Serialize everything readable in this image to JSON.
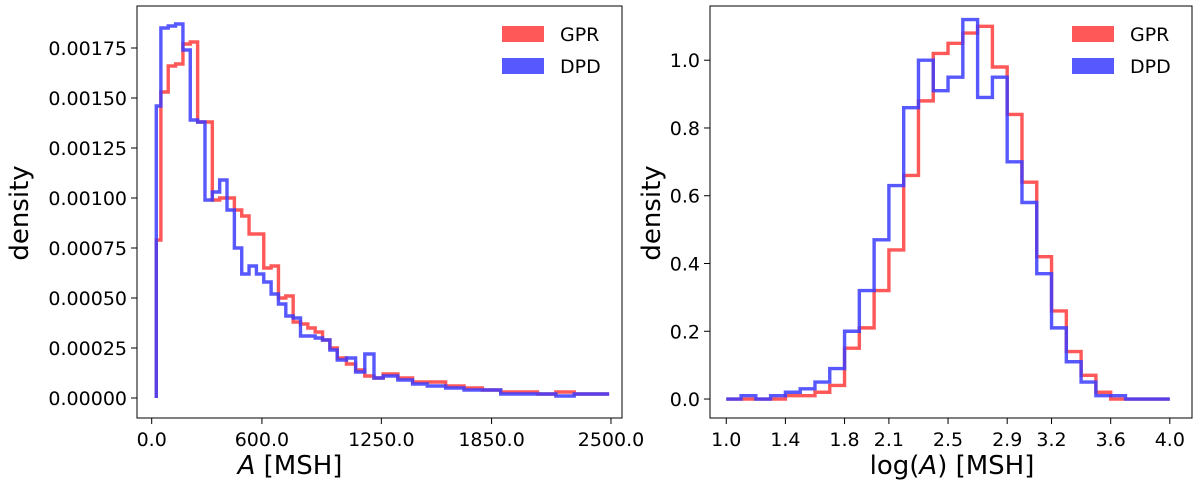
{
  "chart_data": [
    {
      "type": "histogram-step",
      "xlabel_italic": "A",
      "xlabel_rest": " [MSH]",
      "ylabel": "density",
      "xlim": [
        -80,
        2560
      ],
      "ylim": [
        -0.0001,
        0.00196
      ],
      "xticks": [
        0,
        600,
        1250,
        1850,
        2500
      ],
      "xtick_labels": [
        "0.0",
        "600.0",
        "1250.0",
        "1850.0",
        "2500.0"
      ],
      "yticks": [
        0,
        0.00025,
        0.0005,
        0.00075,
        0.001,
        0.00125,
        0.0015,
        0.00175
      ],
      "ytick_labels": [
        "0.00000",
        "0.00025",
        "0.00050",
        "0.00075",
        "0.00100",
        "0.00125",
        "0.00150",
        "0.00175"
      ],
      "legend_position": "top-right",
      "series": [
        {
          "name": "GPR",
          "color": "#ff3b3b",
          "bins": [
            [
              25,
              50,
              0.00079
            ],
            [
              50,
              90,
              0.00153
            ],
            [
              90,
              130,
              0.00166
            ],
            [
              130,
              170,
              0.00167
            ],
            [
              170,
              210,
              0.00177
            ],
            [
              210,
              250,
              0.00178
            ],
            [
              250,
              290,
              0.00138
            ],
            [
              290,
              330,
              0.00138
            ],
            [
              330,
              370,
              0.00099
            ],
            [
              370,
              410,
              0.001
            ],
            [
              410,
              450,
              0.001
            ],
            [
              450,
              490,
              0.00094
            ],
            [
              490,
              530,
              0.00091
            ],
            [
              530,
              570,
              0.00082
            ],
            [
              570,
              610,
              0.00082
            ],
            [
              610,
              650,
              0.00065
            ],
            [
              650,
              690,
              0.00066
            ],
            [
              690,
              730,
              0.0005
            ],
            [
              730,
              770,
              0.00051
            ],
            [
              770,
              810,
              0.00038
            ],
            [
              810,
              850,
              0.00037
            ],
            [
              850,
              890,
              0.00035
            ],
            [
              890,
              930,
              0.00033
            ],
            [
              930,
              970,
              0.00029
            ],
            [
              970,
              1010,
              0.00025
            ],
            [
              1010,
              1060,
              0.0002
            ],
            [
              1060,
              1110,
              0.00017
            ],
            [
              1110,
              1160,
              0.00014
            ],
            [
              1160,
              1210,
              0.00011
            ],
            [
              1210,
              1260,
              0.0001
            ],
            [
              1260,
              1340,
              0.00012
            ],
            [
              1340,
              1420,
              0.0001
            ],
            [
              1420,
              1500,
              8e-05
            ],
            [
              1500,
              1600,
              8e-05
            ],
            [
              1600,
              1700,
              6e-05
            ],
            [
              1700,
              1800,
              5e-05
            ],
            [
              1800,
              1900,
              4e-05
            ],
            [
              1900,
              2000,
              3e-05
            ],
            [
              2000,
              2100,
              3e-05
            ],
            [
              2100,
              2200,
              2e-05
            ],
            [
              2200,
              2300,
              3e-05
            ],
            [
              2300,
              2400,
              2e-05
            ],
            [
              2400,
              2490,
              2e-05
            ]
          ]
        },
        {
          "name": "DPD",
          "color": "#3b3bff",
          "bins": [
            [
              25,
              50,
              0.00146
            ],
            [
              50,
              90,
              0.00185
            ],
            [
              90,
              130,
              0.00186
            ],
            [
              130,
              170,
              0.00187
            ],
            [
              170,
              210,
              0.00174
            ],
            [
              210,
              250,
              0.00139
            ],
            [
              250,
              290,
              0.00138
            ],
            [
              290,
              330,
              0.00099
            ],
            [
              330,
              370,
              0.00103
            ],
            [
              370,
              410,
              0.00109
            ],
            [
              410,
              450,
              0.00094
            ],
            [
              450,
              490,
              0.00075
            ],
            [
              490,
              530,
              0.00062
            ],
            [
              530,
              570,
              0.00066
            ],
            [
              570,
              610,
              0.00062
            ],
            [
              610,
              650,
              0.00058
            ],
            [
              650,
              690,
              0.00052
            ],
            [
              690,
              730,
              0.00047
            ],
            [
              730,
              770,
              0.00041
            ],
            [
              770,
              810,
              0.0004
            ],
            [
              810,
              850,
              0.00031
            ],
            [
              850,
              890,
              0.00031
            ],
            [
              890,
              930,
              0.0003
            ],
            [
              930,
              970,
              0.00029
            ],
            [
              970,
              1010,
              0.00024
            ],
            [
              1010,
              1060,
              0.00019
            ],
            [
              1060,
              1110,
              0.0002
            ],
            [
              1110,
              1160,
              0.00013
            ],
            [
              1160,
              1210,
              0.00022
            ],
            [
              1210,
              1260,
              0.0001
            ],
            [
              1260,
              1340,
              0.00011
            ],
            [
              1340,
              1420,
              9e-05
            ],
            [
              1420,
              1500,
              7e-05
            ],
            [
              1500,
              1600,
              6e-05
            ],
            [
              1600,
              1700,
              5e-05
            ],
            [
              1700,
              1800,
              4e-05
            ],
            [
              1800,
              1900,
              4e-05
            ],
            [
              1900,
              2000,
              2e-05
            ],
            [
              2000,
              2100,
              2e-05
            ],
            [
              2100,
              2200,
              2e-05
            ],
            [
              2200,
              2300,
              1e-05
            ],
            [
              2300,
              2400,
              2e-05
            ],
            [
              2400,
              2490,
              2e-05
            ]
          ]
        }
      ]
    },
    {
      "type": "histogram-step",
      "xlabel_pre": "log(",
      "xlabel_italic": "A",
      "xlabel_rest": ") [MSH]",
      "ylabel": "density",
      "xlim": [
        0.89,
        4.15
      ],
      "ylim": [
        -0.056,
        1.16
      ],
      "xticks": [
        1.0,
        1.4,
        1.8,
        2.1,
        2.5,
        2.9,
        3.2,
        3.6,
        4.0
      ],
      "xtick_labels": [
        "1.0",
        "1.4",
        "1.8",
        "2.1",
        "2.5",
        "2.9",
        "3.2",
        "3.6",
        "4.0"
      ],
      "yticks": [
        0,
        0.2,
        0.4,
        0.6,
        0.8,
        1.0
      ],
      "ytick_labels": [
        "0.0",
        "0.2",
        "0.4",
        "0.6",
        "0.8",
        "1.0"
      ],
      "legend_position": "top-right",
      "series": [
        {
          "name": "GPR",
          "color": "#ff3b3b",
          "bins": [
            [
              1.0,
              1.1,
              0.0
            ],
            [
              1.1,
              1.2,
              0.0
            ],
            [
              1.2,
              1.3,
              0.0
            ],
            [
              1.3,
              1.4,
              0.0
            ],
            [
              1.4,
              1.5,
              0.01
            ],
            [
              1.5,
              1.6,
              0.01
            ],
            [
              1.6,
              1.7,
              0.02
            ],
            [
              1.7,
              1.8,
              0.04
            ],
            [
              1.8,
              1.9,
              0.15
            ],
            [
              1.9,
              2.0,
              0.21
            ],
            [
              2.0,
              2.1,
              0.32
            ],
            [
              2.1,
              2.2,
              0.44
            ],
            [
              2.2,
              2.3,
              0.66
            ],
            [
              2.3,
              2.4,
              0.88
            ],
            [
              2.4,
              2.5,
              1.02
            ],
            [
              2.5,
              2.6,
              1.05
            ],
            [
              2.6,
              2.7,
              1.08
            ],
            [
              2.7,
              2.8,
              1.1
            ],
            [
              2.8,
              2.9,
              0.98
            ],
            [
              2.9,
              3.0,
              0.84
            ],
            [
              3.0,
              3.1,
              0.64
            ],
            [
              3.1,
              3.2,
              0.42
            ],
            [
              3.2,
              3.3,
              0.26
            ],
            [
              3.3,
              3.4,
              0.14
            ],
            [
              3.4,
              3.5,
              0.07
            ],
            [
              3.5,
              3.6,
              0.02
            ],
            [
              3.6,
              3.7,
              0.0
            ],
            [
              3.7,
              3.8,
              0.0
            ],
            [
              3.8,
              3.9,
              0.0
            ],
            [
              3.9,
              4.0,
              0.0
            ]
          ]
        },
        {
          "name": "DPD",
          "color": "#3b3bff",
          "bins": [
            [
              1.0,
              1.1,
              0.0
            ],
            [
              1.1,
              1.2,
              0.01
            ],
            [
              1.2,
              1.3,
              0.0
            ],
            [
              1.3,
              1.4,
              0.01
            ],
            [
              1.4,
              1.5,
              0.02
            ],
            [
              1.5,
              1.6,
              0.03
            ],
            [
              1.6,
              1.7,
              0.05
            ],
            [
              1.7,
              1.8,
              0.09
            ],
            [
              1.8,
              1.9,
              0.2
            ],
            [
              1.9,
              2.0,
              0.32
            ],
            [
              2.0,
              2.1,
              0.47
            ],
            [
              2.1,
              2.2,
              0.63
            ],
            [
              2.2,
              2.3,
              0.86
            ],
            [
              2.3,
              2.4,
              1.0
            ],
            [
              2.4,
              2.5,
              0.91
            ],
            [
              2.5,
              2.6,
              0.95
            ],
            [
              2.6,
              2.7,
              1.12
            ],
            [
              2.7,
              2.8,
              0.89
            ],
            [
              2.8,
              2.9,
              0.95
            ],
            [
              2.9,
              3.0,
              0.7
            ],
            [
              3.0,
              3.1,
              0.58
            ],
            [
              3.1,
              3.2,
              0.37
            ],
            [
              3.2,
              3.3,
              0.21
            ],
            [
              3.3,
              3.4,
              0.11
            ],
            [
              3.4,
              3.5,
              0.05
            ],
            [
              3.5,
              3.6,
              0.01
            ],
            [
              3.6,
              3.7,
              0.01
            ],
            [
              3.7,
              3.8,
              0.0
            ],
            [
              3.8,
              3.9,
              0.0
            ],
            [
              3.9,
              4.0,
              0.0
            ]
          ]
        }
      ]
    }
  ]
}
